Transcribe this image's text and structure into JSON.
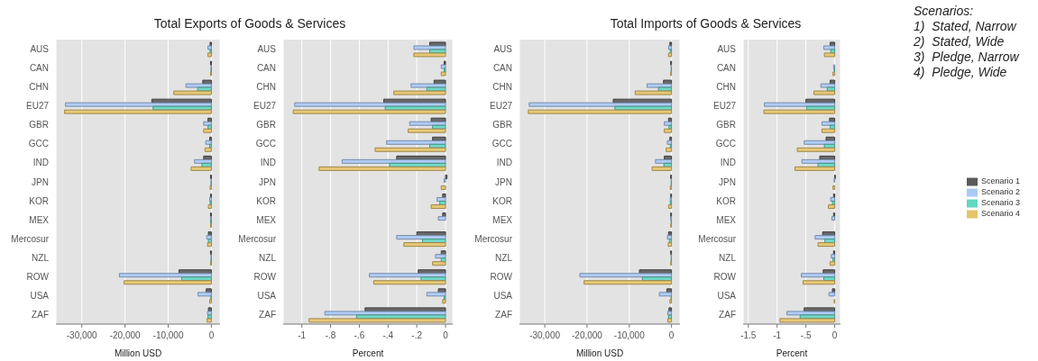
{
  "chart_data": [
    {
      "type": "bar",
      "orientation": "horizontal",
      "title": "Total Exports of Goods & Services",
      "xlabel": "Million USD",
      "categories": [
        "AUS",
        "CAN",
        "CHN",
        "EU27",
        "GBR",
        "GCC",
        "IND",
        "JPN",
        "KOR",
        "MEX",
        "Mercosur",
        "NZL",
        "ROW",
        "USA",
        "ZAF"
      ],
      "xlim": [
        -36000,
        2000
      ],
      "xticks": [
        {
          "value": -30000,
          "label": "-30,000"
        },
        {
          "value": -20000,
          "label": "-20,000"
        },
        {
          "value": -10000,
          "label": "-10,000"
        },
        {
          "value": 0,
          "label": "0"
        }
      ],
      "grid": "x",
      "series": [
        {
          "color": "#5a5a5a",
          "values": [
            -300,
            -200,
            -2000,
            -13800,
            -800,
            -400,
            -1800,
            -200,
            -200,
            -200,
            -700,
            -200,
            -7500,
            -1200,
            -700
          ]
        },
        {
          "color": "#a9c9f7",
          "values": [
            -800,
            -100,
            -5900,
            -33800,
            -1800,
            -1300,
            -3900,
            -100,
            -400,
            -200,
            -1100,
            -100,
            -21300,
            -3100,
            -900
          ]
        },
        {
          "color": "#63d8c2",
          "values": [
            -300,
            -100,
            -3200,
            -13500,
            -800,
            -400,
            -2200,
            -100,
            -300,
            -200,
            -700,
            -100,
            -6900,
            -100,
            -800
          ]
        },
        {
          "color": "#e5c46a",
          "values": [
            -800,
            -200,
            -8700,
            -34000,
            -1800,
            -1500,
            -4700,
            -300,
            -700,
            -200,
            -900,
            -200,
            -20200,
            -400,
            -1000
          ]
        }
      ]
    },
    {
      "type": "bar",
      "orientation": "horizontal",
      "xlabel": "Percent",
      "categories": [
        "AUS",
        "CAN",
        "CHN",
        "EU27",
        "GBR",
        "GCC",
        "IND",
        "JPN",
        "KOR",
        "MEX",
        "Mercosur",
        "NZL",
        "ROW",
        "USA",
        "ZAF"
      ],
      "xlim": [
        -1.13,
        0.05
      ],
      "xticks": [
        -1,
        {
          "value": -0.8,
          "label": "-.8"
        },
        {
          "value": -0.6,
          "label": "-.6"
        },
        {
          "value": -0.4,
          "label": "-.4"
        },
        {
          "value": -0.2,
          "label": "-.2"
        },
        {
          "value": 0,
          "label": "0"
        }
      ],
      "grid": "x",
      "series": [
        {
          "color": "#5a5a5a",
          "values": [
            -0.11,
            -0.01,
            -0.08,
            -0.43,
            -0.1,
            -0.09,
            -0.34,
            0.01,
            -0.02,
            -0.02,
            -0.2,
            -0.03,
            -0.19,
            -0.05,
            -0.56
          ]
        },
        {
          "color": "#a9c9f7",
          "values": [
            -0.22,
            -0.03,
            -0.24,
            -1.05,
            -0.25,
            -0.41,
            -0.72,
            -0.01,
            -0.06,
            -0.05,
            -0.34,
            -0.07,
            -0.53,
            -0.13,
            -0.84
          ]
        },
        {
          "color": "#63d8c2",
          "values": [
            -0.11,
            -0.01,
            -0.13,
            -0.42,
            -0.09,
            -0.11,
            -0.39,
            0,
            -0.04,
            0,
            -0.16,
            -0.03,
            -0.17,
            -0.01,
            -0.62
          ]
        },
        {
          "color": "#e5c46a",
          "values": [
            -0.22,
            -0.03,
            -0.36,
            -1.06,
            -0.26,
            -0.49,
            -0.88,
            -0.03,
            -0.1,
            0,
            -0.29,
            -0.09,
            -0.5,
            -0.02,
            -0.95
          ]
        }
      ]
    },
    {
      "type": "bar",
      "orientation": "horizontal",
      "title": "Total Imports of Goods & Services",
      "xlabel": "Million USD",
      "categories": [
        "AUS",
        "CAN",
        "CHN",
        "EU27",
        "GBR",
        "GCC",
        "IND",
        "JPN",
        "KOR",
        "MEX",
        "Mercosur",
        "NZL",
        "ROW",
        "USA",
        "ZAF"
      ],
      "xlim": [
        -36000,
        2000
      ],
      "xticks": [
        {
          "value": -30000,
          "label": "-30,000"
        },
        {
          "value": -20000,
          "label": "-20,000"
        },
        {
          "value": -10000,
          "label": "-10,000"
        },
        {
          "value": 0,
          "label": "0"
        }
      ],
      "grid": "x",
      "series": [
        {
          "color": "#5a5a5a",
          "values": [
            -400,
            -200,
            -1900,
            -13800,
            -700,
            -400,
            -1700,
            -200,
            -200,
            -200,
            -700,
            -200,
            -7600,
            -1100,
            -600
          ]
        },
        {
          "color": "#a9c9f7",
          "values": [
            -700,
            -100,
            -5800,
            -33700,
            -1700,
            -1000,
            -3800,
            -100,
            -300,
            -200,
            -1000,
            -100,
            -21700,
            -2900,
            -900
          ]
        },
        {
          "color": "#63d8c2",
          "values": [
            -300,
            -100,
            -3100,
            -13400,
            -600,
            -300,
            -1800,
            -100,
            -300,
            -100,
            -500,
            -100,
            -6900,
            -100,
            -700
          ]
        },
        {
          "color": "#e5c46a",
          "values": [
            -700,
            -200,
            -8600,
            -33900,
            -1700,
            -1300,
            -4600,
            -300,
            -700,
            -200,
            -800,
            -200,
            -20700,
            -400,
            -900
          ]
        }
      ]
    },
    {
      "type": "bar",
      "orientation": "horizontal",
      "xlabel": "Percent",
      "categories": [
        "AUS",
        "CAN",
        "CHN",
        "EU27",
        "GBR",
        "GCC",
        "IND",
        "JPN",
        "KOR",
        "MEX",
        "Mercosur",
        "NZL",
        "ROW",
        "USA",
        "ZAF"
      ],
      "xlim": [
        -1.59,
        0.1
      ],
      "xticks": [
        {
          "value": -1.5,
          "label": "-1.5"
        },
        -1,
        {
          "value": -0.5,
          "label": "-.5"
        },
        {
          "value": 0,
          "label": "0"
        }
      ],
      "grid": "x",
      "legend": "right",
      "annotations": [
        "Scenarios:",
        "1)  Stated, Narrow",
        "2)  Stated, Wide",
        "3)  Pledge, Narrow",
        "4)  Pledge, Wide"
      ],
      "series": [
        {
          "name": "Scenario 1",
          "color": "#5a5a5a",
          "values": [
            -0.08,
            0,
            -0.08,
            -0.5,
            -0.09,
            -0.15,
            -0.26,
            0.01,
            -0.02,
            -0.02,
            -0.21,
            -0.02,
            -0.2,
            -0.04,
            -0.53
          ]
        },
        {
          "name": "Scenario 2",
          "color": "#a9c9f7",
          "values": [
            -0.19,
            -0.02,
            -0.24,
            -1.22,
            -0.22,
            -0.53,
            -0.57,
            -0.01,
            -0.07,
            -0.05,
            -0.34,
            -0.06,
            -0.58,
            -0.1,
            -0.83
          ]
        },
        {
          "name": "Scenario 3",
          "color": "#63d8c2",
          "values": [
            -0.07,
            -0.01,
            -0.13,
            -0.49,
            -0.08,
            -0.18,
            -0.29,
            0,
            -0.04,
            0,
            -0.17,
            -0.03,
            -0.19,
            0,
            -0.6
          ]
        },
        {
          "name": "Scenario 4",
          "color": "#e5c46a",
          "values": [
            -0.18,
            -0.03,
            -0.36,
            -1.23,
            -0.22,
            -0.65,
            -0.69,
            -0.03,
            -0.11,
            0,
            -0.29,
            -0.08,
            -0.55,
            -0.01,
            -0.95
          ]
        }
      ]
    }
  ]
}
